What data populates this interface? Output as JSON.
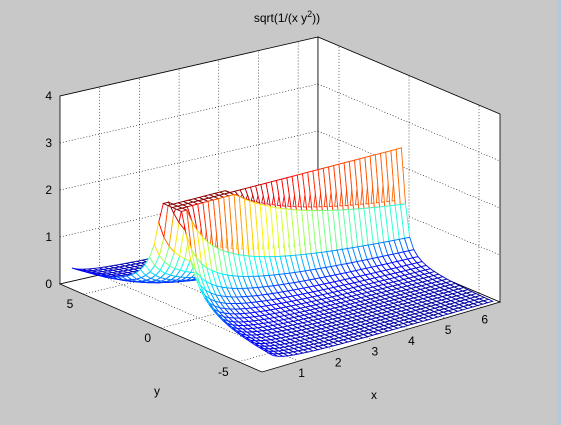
{
  "figure": {
    "background_color": "#c8c8c8",
    "axes_color": "#ffffff"
  },
  "chart_data": {
    "type": "surface-mesh",
    "title_parts": {
      "prefix": "sqrt(1/(x y",
      "superscript": "2",
      "suffix": "))"
    },
    "xlabel": "x",
    "ylabel": "y",
    "zlabel": "",
    "xlim": [
      0,
      6.5
    ],
    "ylim": [
      -6.5,
      6.5
    ],
    "zlim": [
      0,
      4
    ],
    "xticks": [
      1,
      2,
      3,
      4,
      5,
      6
    ],
    "yticks": [
      -5,
      0,
      5
    ],
    "zticks": [
      0,
      1,
      2,
      3,
      4
    ],
    "xtick_labels": [
      "1",
      "2",
      "3",
      "4",
      "5",
      "6"
    ],
    "ytick_labels": [
      "-5",
      "0",
      "5"
    ],
    "ztick_labels": [
      "0",
      "1",
      "2",
      "3",
      "4"
    ],
    "grid": true,
    "colormap": "jet",
    "function": "sqrt(1/(x*y^2))",
    "x_range": [
      0.3,
      6.3
    ],
    "y_range": [
      -6.5,
      6.5
    ],
    "grid_x_count": 45,
    "grid_y_count": 45,
    "z_clip": 2.5
  }
}
